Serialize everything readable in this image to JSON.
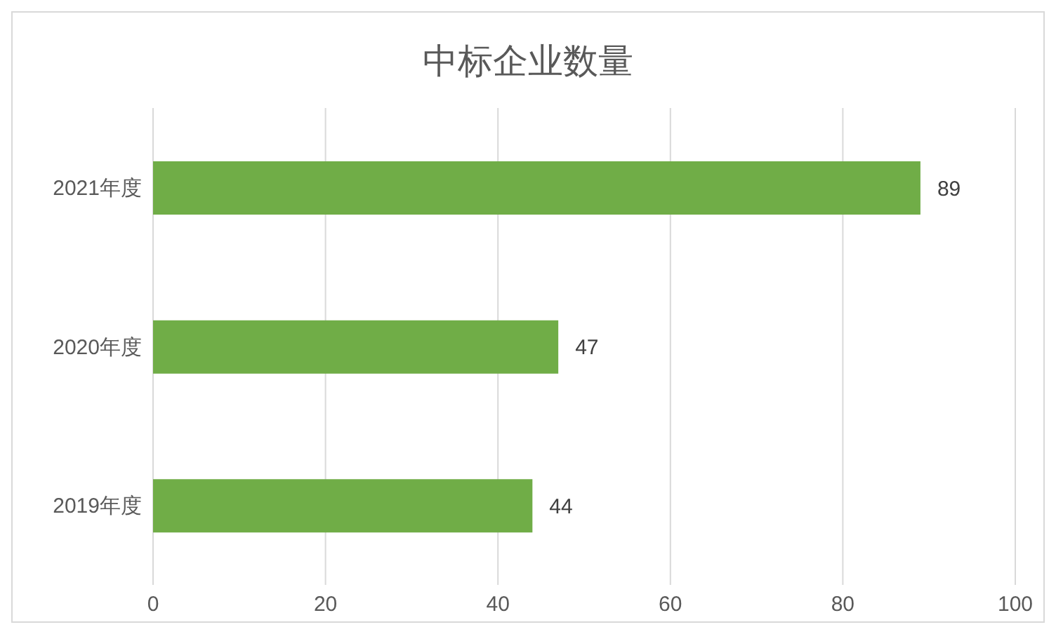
{
  "chart_data": {
    "type": "bar",
    "orientation": "horizontal",
    "title": "中标企业数量",
    "categories": [
      "2021年度",
      "2020年度",
      "2019年度"
    ],
    "values": [
      89,
      47,
      44
    ],
    "color": "#70ad47",
    "xlim": [
      0,
      100
    ],
    "xticks": [
      0,
      20,
      40,
      60,
      80,
      100
    ],
    "grid": "x",
    "data_labels": true
  }
}
